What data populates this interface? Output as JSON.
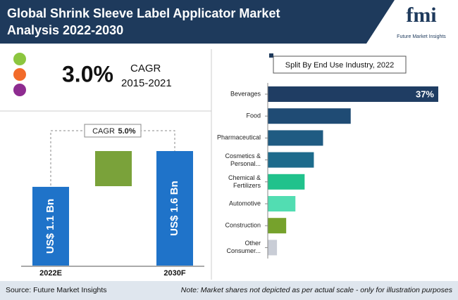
{
  "header": {
    "title": "Global Shrink Sleeve Label Applicator Market Analysis 2022-2030",
    "logo": "fmi",
    "logo_caption": "Future Market Insights"
  },
  "cagr_block": {
    "value": "3.0%",
    "label": "CAGR",
    "period": "2015-2021"
  },
  "chart_data": [
    {
      "type": "bar",
      "categories": [
        "2022E",
        "2030F"
      ],
      "values": [
        1.1,
        1.6
      ],
      "value_labels": [
        "US$ 1.1 Bn",
        "US$ 1.6 Bn"
      ],
      "color": "#1f73c9",
      "annotation": {
        "label": "CAGR",
        "value": "5.0%"
      }
    },
    {
      "type": "barh",
      "title": "Split By End Use Industry, 2022",
      "categories": [
        "Beverages",
        "Food",
        "Pharmaceutical",
        "Cosmetics & Personal...",
        "Chemical & Fertilizers",
        "Automotive",
        "Construction",
        "Other Consumer..."
      ],
      "values": [
        37,
        18,
        12,
        10,
        8,
        6,
        4,
        2
      ],
      "value_labels": [
        "37%",
        null,
        null,
        null,
        null,
        null,
        null,
        null
      ],
      "colors": [
        "#1f3d63",
        "#1f4b74",
        "#1f5b82",
        "#1d6b8c",
        "#21c28c",
        "#52ddb2",
        "#76a22c",
        "#c9cdd6"
      ]
    }
  ],
  "footer": {
    "source": "Source: Future Market Insights",
    "note": "Note: Market shares not depicted as per actual scale - only for illustration purposes"
  }
}
